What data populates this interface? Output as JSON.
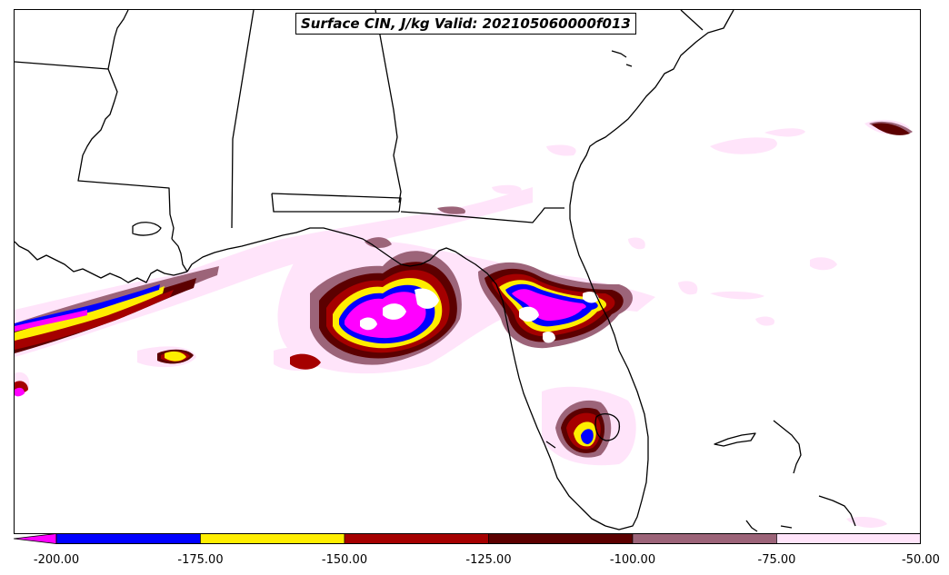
{
  "title": "Surface CIN, J/kg Valid: 202105060000f013",
  "colorbar": {
    "ticks": [
      "-200.00",
      "-175.00",
      "-150.00",
      "-125.00",
      "-100.00",
      "-75.00",
      "-50.00"
    ],
    "levels": [
      {
        "from": -200,
        "to": -175,
        "color": "#0000ff"
      },
      {
        "from": -175,
        "to": -150,
        "color": "#ffee00"
      },
      {
        "from": -150,
        "to": -125,
        "color": "#a50000"
      },
      {
        "from": -125,
        "to": -100,
        "color": "#5c0000"
      },
      {
        "from": -100,
        "to": -75,
        "color": "#9c6479"
      },
      {
        "from": -75,
        "to": -50,
        "color": "#ffe4fa"
      }
    ],
    "under_color": "#ff00ff"
  },
  "colors": {
    "very_light": "#ffe4fa",
    "mauve": "#9c6479",
    "dark_red": "#5c0000",
    "red": "#a50000",
    "yellow": "#ffee00",
    "blue": "#0000ff",
    "magenta": "#ff00ff",
    "coastline": "#000000"
  }
}
